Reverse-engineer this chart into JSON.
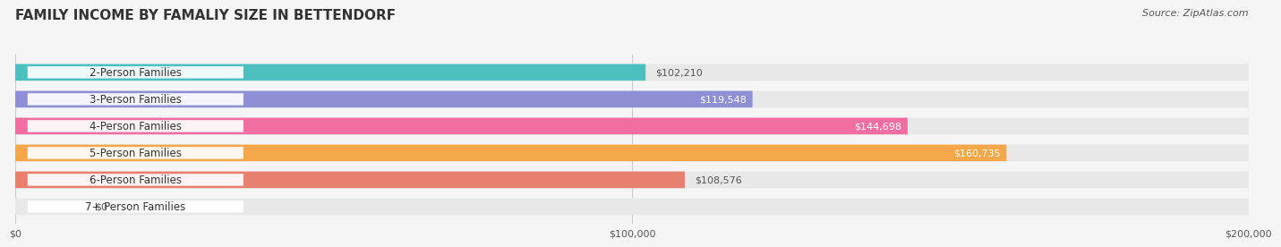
{
  "title": "FAMILY INCOME BY FAMALIY SIZE IN BETTENDORF",
  "source": "Source: ZipAtlas.com",
  "categories": [
    "2-Person Families",
    "3-Person Families",
    "4-Person Families",
    "5-Person Families",
    "6-Person Families",
    "7+ Person Families"
  ],
  "values": [
    102210,
    119548,
    144698,
    160735,
    108576,
    0
  ],
  "bar_colors": [
    "#4DBFBF",
    "#8E8FD4",
    "#F06FA0",
    "#F5A84A",
    "#E88070",
    "#90BADC"
  ],
  "value_labels": [
    "$102,210",
    "$119,548",
    "$144,698",
    "$160,735",
    "$108,576",
    "$0"
  ],
  "value_label_colors": [
    "#555555",
    "#555555",
    "#ffffff",
    "#ffffff",
    "#555555",
    "#555555"
  ],
  "xlim": [
    0,
    200000
  ],
  "xticks": [
    0,
    100000,
    200000
  ],
  "xticklabels": [
    "$0",
    "$100,000",
    "$200,000"
  ],
  "background_color": "#f5f5f5",
  "bar_background_color": "#e8e8e8",
  "title_fontsize": 11,
  "source_fontsize": 8,
  "label_fontsize": 8.5,
  "value_fontsize": 8,
  "figwidth": 14.06,
  "figheight": 3.05
}
